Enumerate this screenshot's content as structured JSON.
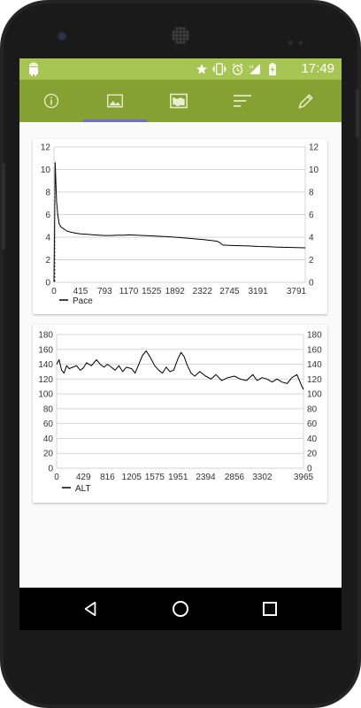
{
  "status_bar": {
    "time": "17:49",
    "icons": [
      "android-icon",
      "star-icon",
      "vibrate-icon",
      "alarm-icon",
      "signal-icon",
      "battery-charging-icon"
    ]
  },
  "tabs": [
    {
      "icon": "info-icon",
      "selected": false
    },
    {
      "icon": "image-icon",
      "selected": true
    },
    {
      "icon": "map-icon",
      "selected": false
    },
    {
      "icon": "sort-lines-icon",
      "selected": false
    },
    {
      "icon": "pencil-icon",
      "selected": false
    }
  ],
  "colors": {
    "status_bar": "#a7c552",
    "app_bar": "#85a132",
    "tab_indicator": "#6b6fd0",
    "series_line": "#000000",
    "grid": "#d6d6d6"
  },
  "chart_data": [
    {
      "type": "line",
      "series": [
        {
          "name": "Pace",
          "x": [
            0,
            20,
            40,
            60,
            80,
            110,
            150,
            200,
            260,
            340,
            415,
            500,
            600,
            700,
            793,
            900,
            1000,
            1100,
            1170,
            1300,
            1400,
            1525,
            1650,
            1760,
            1892,
            2000,
            2100,
            2200,
            2322,
            2450,
            2560,
            2600,
            2640,
            2745,
            2900,
            3050,
            3191,
            3350,
            3500,
            3650,
            3791,
            3930
          ],
          "values": [
            0,
            10.6,
            7.2,
            6.0,
            5.2,
            4.9,
            4.75,
            4.55,
            4.45,
            4.35,
            4.3,
            4.27,
            4.22,
            4.18,
            4.15,
            4.15,
            4.17,
            4.18,
            4.2,
            4.18,
            4.15,
            4.12,
            4.08,
            4.05,
            4.0,
            3.95,
            3.9,
            3.85,
            3.8,
            3.72,
            3.62,
            3.5,
            3.3,
            3.28,
            3.25,
            3.22,
            3.18,
            3.15,
            3.12,
            3.1,
            3.08,
            3.06
          ]
        }
      ],
      "x_ticks": [
        "0",
        "415",
        "793",
        "1170",
        "1525",
        "1892",
        "2322",
        "2745",
        "3191",
        "3791"
      ],
      "y_ticks": [
        "0",
        "2",
        "4",
        "6",
        "8",
        "10",
        "12"
      ],
      "xlim": [
        0,
        3930
      ],
      "ylim": [
        0,
        12
      ],
      "grid": true,
      "legend": "bottom-left"
    },
    {
      "type": "line",
      "series": [
        {
          "name": "ALT",
          "x": [
            0,
            40,
            80,
            120,
            160,
            200,
            260,
            320,
            380,
            429,
            480,
            560,
            640,
            700,
            760,
            816,
            880,
            940,
            1000,
            1060,
            1120,
            1205,
            1260,
            1320,
            1380,
            1440,
            1500,
            1575,
            1640,
            1700,
            1760,
            1820,
            1880,
            1951,
            2000,
            2050,
            2100,
            2160,
            2220,
            2300,
            2394,
            2480,
            2560,
            2650,
            2750,
            2856,
            2950,
            3050,
            3150,
            3220,
            3302,
            3380,
            3460,
            3540,
            3620,
            3700,
            3780,
            3860,
            3930,
            3965
          ],
          "values": [
            140,
            146,
            132,
            128,
            138,
            134,
            136,
            138,
            132,
            135,
            142,
            138,
            146,
            140,
            136,
            140,
            136,
            132,
            138,
            130,
            136,
            134,
            128,
            140,
            152,
            158,
            150,
            138,
            132,
            128,
            136,
            130,
            132,
            148,
            156,
            150,
            138,
            128,
            124,
            130,
            124,
            120,
            126,
            118,
            122,
            124,
            120,
            118,
            126,
            118,
            122,
            120,
            116,
            120,
            116,
            114,
            122,
            126,
            112,
            106
          ]
        }
      ],
      "x_ticks": [
        "0",
        "429",
        "816",
        "1205",
        "1575",
        "1951",
        "2394",
        "2856",
        "3302",
        "3965"
      ],
      "y_ticks": [
        "0",
        "20",
        "40",
        "60",
        "80",
        "100",
        "120",
        "140",
        "160",
        "180"
      ],
      "xlim": [
        0,
        3965
      ],
      "ylim": [
        0,
        180
      ],
      "grid": true,
      "legend": "bottom-left"
    }
  ],
  "nav_bar": {
    "buttons": [
      "back-icon",
      "home-icon",
      "recents-icon"
    ]
  }
}
